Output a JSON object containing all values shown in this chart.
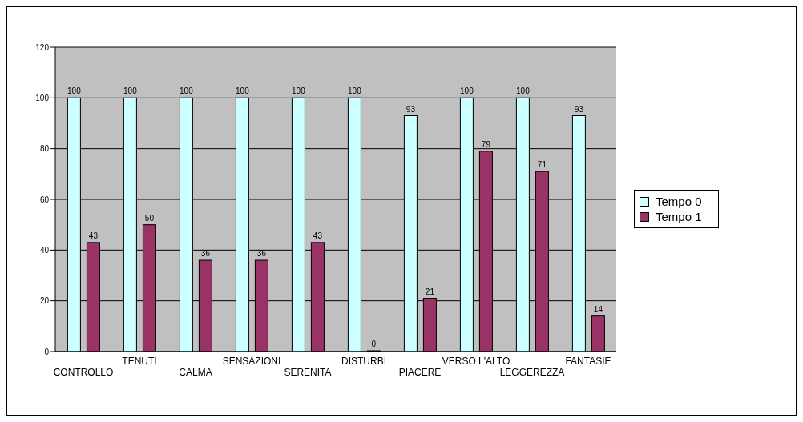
{
  "chart_data": {
    "type": "bar",
    "categories": [
      "CONTROLLO",
      "TENUTI",
      "CALMA",
      "SENSAZIONI",
      "SERENITA",
      "DISTURBI",
      "PIACERE",
      "VERSO L'ALTO",
      "LEGGEREZZA",
      "FANTASIE"
    ],
    "series": [
      {
        "name": "Tempo 0",
        "color": "#ccffff",
        "values": [
          100,
          100,
          100,
          100,
          100,
          100,
          93,
          100,
          100,
          93
        ]
      },
      {
        "name": "Tempo 1",
        "color": "#993366",
        "values": [
          43,
          50,
          36,
          36,
          43,
          0,
          21,
          79,
          71,
          14
        ]
      }
    ],
    "ylim": [
      0,
      120
    ],
    "yticks": [
      0,
      20,
      40,
      60,
      80,
      100,
      120
    ],
    "grid": "y",
    "legend": "right",
    "data_labels": true
  }
}
